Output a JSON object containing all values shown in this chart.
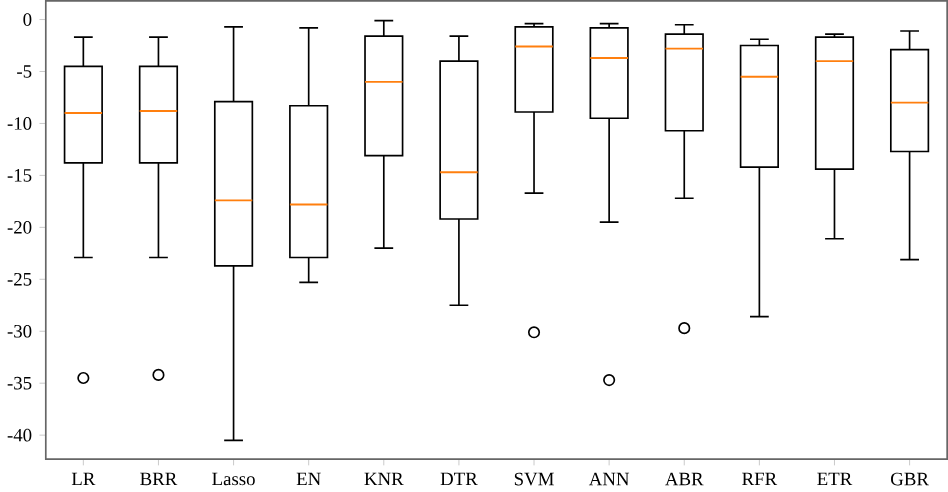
{
  "chart_data": {
    "type": "box",
    "categories": [
      "LR",
      "BRR",
      "Lasso",
      "EN",
      "KNR",
      "DTR",
      "SVM",
      "ANN",
      "ABR",
      "RFR",
      "ETR",
      "GBR"
    ],
    "boxes": [
      {
        "low": -22.9,
        "q1": -13.8,
        "median": -9.0,
        "q3": -4.5,
        "high": -1.7,
        "outliers": [
          -34.5
        ]
      },
      {
        "low": -22.9,
        "q1": -13.8,
        "median": -8.8,
        "q3": -4.5,
        "high": -1.7,
        "outliers": [
          -34.2
        ]
      },
      {
        "low": -40.5,
        "q1": -23.7,
        "median": -17.4,
        "q3": -7.9,
        "high": -0.7
      },
      {
        "low": -25.3,
        "q1": -22.9,
        "median": -17.8,
        "q3": -8.3,
        "high": -0.8
      },
      {
        "low": -22.0,
        "q1": -13.1,
        "median": -6.0,
        "q3": -1.6,
        "high": -0.1
      },
      {
        "low": -27.5,
        "q1": -19.2,
        "median": -14.7,
        "q3": -4.0,
        "high": -1.6
      },
      {
        "low": -16.7,
        "q1": -8.9,
        "median": -2.6,
        "q3": -0.7,
        "high": -0.4,
        "outliers": [
          -30.1
        ]
      },
      {
        "low": -19.5,
        "q1": -9.5,
        "median": -3.7,
        "q3": -0.8,
        "high": -0.4,
        "outliers": [
          -34.7
        ]
      },
      {
        "low": -17.2,
        "q1": -10.7,
        "median": -2.8,
        "q3": -1.4,
        "high": -0.5,
        "outliers": [
          -29.7
        ]
      },
      {
        "low": -28.6,
        "q1": -14.2,
        "median": -5.5,
        "q3": -2.5,
        "high": -1.9
      },
      {
        "low": -21.1,
        "q1": -14.4,
        "median": -4.0,
        "q3": -1.7,
        "high": -1.4
      },
      {
        "low": -23.1,
        "q1": -12.7,
        "median": -8.0,
        "q3": -2.9,
        "high": -1.1
      }
    ],
    "color": "#000000",
    "ylim": [
      -42.3,
      1.8
    ],
    "yticks": [
      0,
      -5,
      -10,
      -15,
      -20,
      -25,
      -30,
      -35,
      -40
    ],
    "grid": false
  }
}
